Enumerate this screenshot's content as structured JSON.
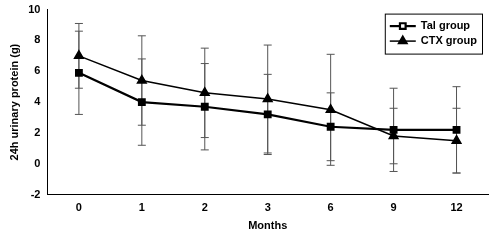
{
  "chart_data": {
    "type": "line",
    "x_label": "Months",
    "y_label": "24h urinary protein (g)",
    "categories": [
      "0",
      "1",
      "2",
      "3",
      "6",
      "9",
      "12"
    ],
    "series": [
      {
        "name": "Tal group",
        "color": "#000000",
        "marker": "square",
        "line_style": "solid",
        "values": [
          5.9,
          4.0,
          3.7,
          3.2,
          2.4,
          2.2,
          2.2
        ],
        "errors": [
          2.7,
          2.8,
          2.8,
          2.6,
          2.2,
          2.7,
          2.8
        ]
      },
      {
        "name": "CTX group",
        "color": "#000000",
        "marker": "triangle",
        "line_style": "solid",
        "values": [
          7.0,
          5.4,
          4.6,
          4.2,
          3.5,
          1.8,
          1.5
        ],
        "errors": [
          2.1,
          2.9,
          2.9,
          3.5,
          3.6,
          1.8,
          2.1
        ]
      }
    ],
    "ylim": [
      -2,
      10
    ],
    "yticks": [
      -2,
      0,
      2,
      4,
      6,
      8,
      10
    ],
    "grid": false,
    "legend": "upper right"
  }
}
